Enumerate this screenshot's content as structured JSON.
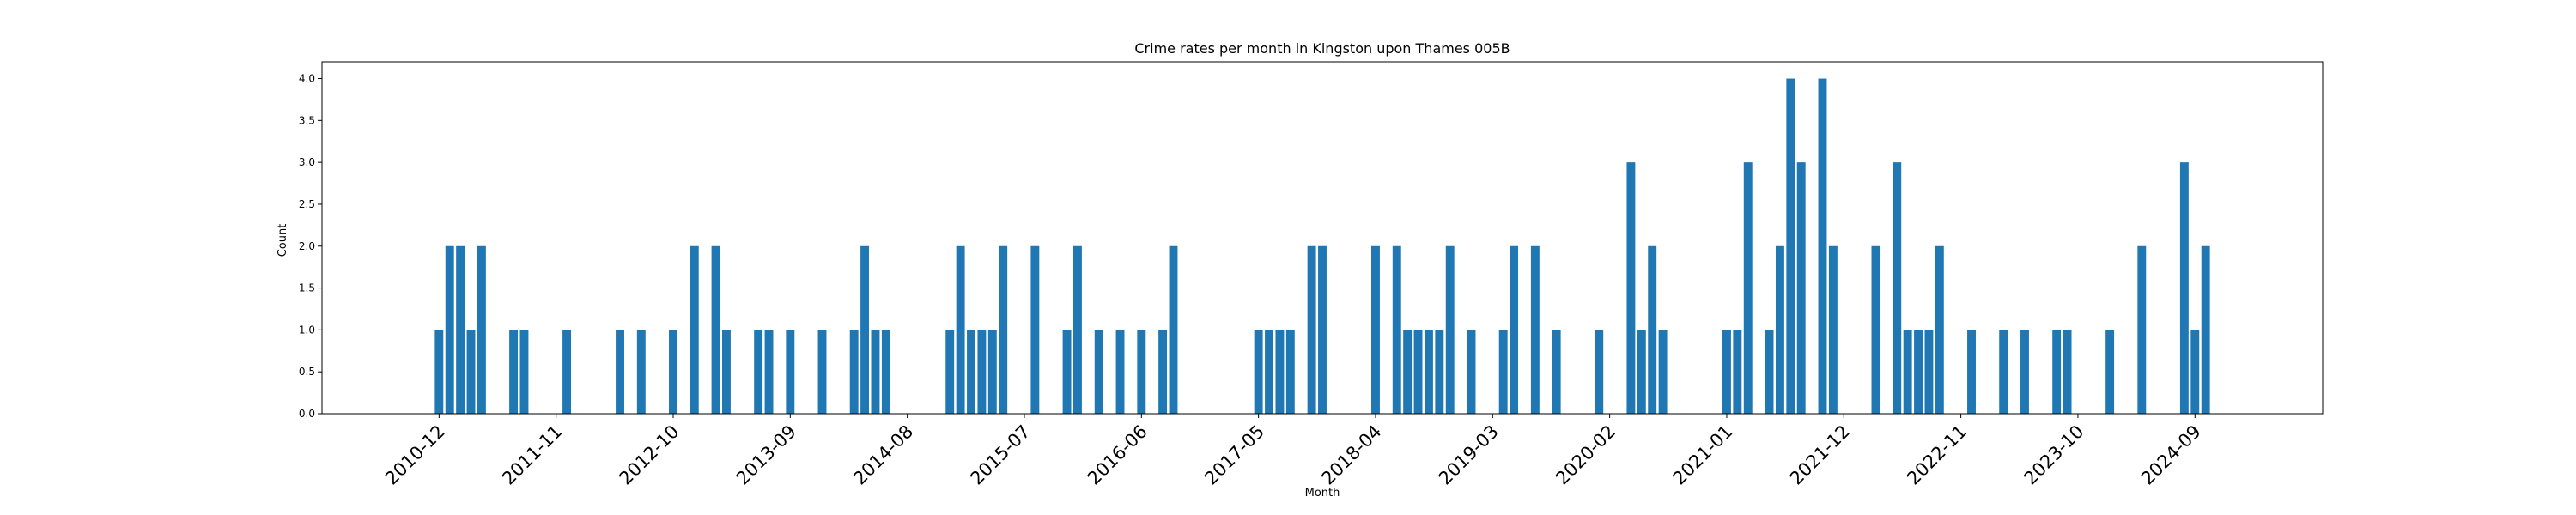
{
  "chart_data": {
    "type": "bar",
    "title": "Crime rates per month in Kingston upon Thames 005B",
    "xlabel": "Month",
    "ylabel": "Count",
    "ylim": [
      0,
      4.2
    ],
    "yticks": [
      0.0,
      0.5,
      1.0,
      1.5,
      2.0,
      2.5,
      3.0,
      3.5,
      4.0
    ],
    "ytick_labels": [
      "0.0",
      "0.5",
      "1.0",
      "1.5",
      "2.0",
      "2.5",
      "3.0",
      "3.5",
      "4.0"
    ],
    "xlim": [
      "2010-01",
      "2025-09"
    ],
    "xtick_labels": [
      "2010-12",
      "2011-11",
      "2012-10",
      "2013-09",
      "2014-08",
      "2015-07",
      "2016-06",
      "2017-05",
      "2018-04",
      "2019-03",
      "2020-02",
      "2021-01",
      "2021-12",
      "2022-11",
      "2023-10",
      "2024-09"
    ],
    "bar_color": "#1f77b4",
    "grid": false,
    "legend": "none",
    "months": [
      "2010-12",
      "2011-01",
      "2011-02",
      "2011-03",
      "2011-04",
      "2011-07",
      "2011-08",
      "2011-12",
      "2012-05",
      "2012-07",
      "2012-10",
      "2012-12",
      "2013-02",
      "2013-03",
      "2013-06",
      "2013-07",
      "2013-09",
      "2013-12",
      "2014-03",
      "2014-04",
      "2014-05",
      "2014-06",
      "2014-12",
      "2015-01",
      "2015-02",
      "2015-03",
      "2015-04",
      "2015-05",
      "2015-08",
      "2015-11",
      "2015-12",
      "2016-02",
      "2016-04",
      "2016-06",
      "2016-08",
      "2016-09",
      "2017-05",
      "2017-06",
      "2017-07",
      "2017-08",
      "2017-10",
      "2017-11",
      "2018-04",
      "2018-06",
      "2018-07",
      "2018-08",
      "2018-09",
      "2018-10",
      "2018-11",
      "2019-01",
      "2019-04",
      "2019-05",
      "2019-07",
      "2019-09",
      "2020-01",
      "2020-04",
      "2020-05",
      "2020-06",
      "2020-07",
      "2021-01",
      "2021-02",
      "2021-03",
      "2021-05",
      "2021-06",
      "2021-07",
      "2021-08",
      "2021-10",
      "2021-11",
      "2022-03",
      "2022-05",
      "2022-06",
      "2022-07",
      "2022-08",
      "2022-09",
      "2022-12",
      "2023-03",
      "2023-05",
      "2023-08",
      "2023-09",
      "2024-01",
      "2024-04",
      "2024-08",
      "2024-09",
      "2024-10"
    ],
    "values": [
      1,
      2,
      2,
      1,
      2,
      1,
      1,
      1,
      1,
      1,
      1,
      2,
      2,
      1,
      1,
      1,
      1,
      1,
      1,
      2,
      1,
      1,
      1,
      2,
      1,
      1,
      1,
      2,
      2,
      1,
      2,
      1,
      1,
      1,
      1,
      2,
      1,
      1,
      1,
      1,
      2,
      2,
      2,
      2,
      1,
      1,
      1,
      1,
      2,
      1,
      1,
      2,
      2,
      1,
      1,
      3,
      1,
      2,
      1,
      1,
      1,
      3,
      1,
      2,
      4,
      3,
      4,
      2,
      2,
      3,
      1,
      1,
      1,
      2,
      1,
      1,
      1,
      1,
      1,
      1,
      2,
      3,
      1,
      2
    ]
  }
}
